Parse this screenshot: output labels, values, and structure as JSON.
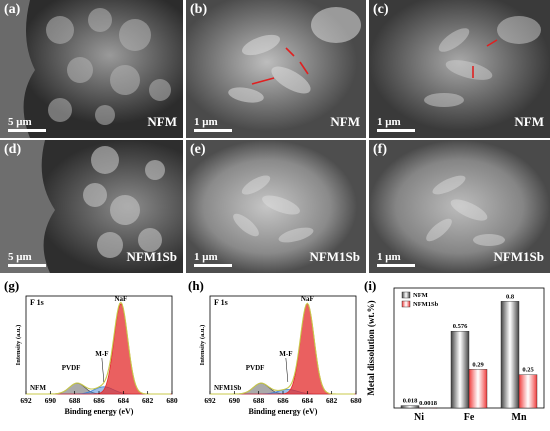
{
  "sem_panels": [
    {
      "label": "(a)",
      "sample": "NFM",
      "scale": "5 μm"
    },
    {
      "label": "(b)",
      "sample": "NFM",
      "scale": "1 μm"
    },
    {
      "label": "(c)",
      "sample": "NFM",
      "scale": "1 μm"
    },
    {
      "label": "(d)",
      "sample": "NFM1Sb",
      "scale": "5 μm"
    },
    {
      "label": "(e)",
      "sample": "NFM1Sb",
      "scale": "1 μm"
    },
    {
      "label": "(f)",
      "sample": "NFM1Sb",
      "scale": "1 μm"
    }
  ],
  "colors": {
    "naf": "#e32b2b",
    "mf": "#3a7fd6",
    "pvdf": "#555555",
    "envelope": "#c8c84a",
    "nfm_bar": "#404040",
    "nfm1sb_bar": "#ef3a3a"
  },
  "chart_data": [
    {
      "type": "area",
      "panel_label": "(g)",
      "inner_label": "F 1s",
      "sample_label": "NFM",
      "xlabel": "Binding energy (eV)",
      "ylabel": "Intensity (a.u.)",
      "xlim": [
        692,
        680
      ],
      "xticks": [
        692,
        690,
        688,
        686,
        684,
        682,
        680
      ],
      "peak_labels": [
        "PVDF",
        "M-F",
        "NaF"
      ],
      "peaks": [
        {
          "label": "PVDF",
          "center": 687.8,
          "height": 0.12
        },
        {
          "label": "M-F",
          "center": 685.6,
          "height": 0.08
        },
        {
          "label": "NaF",
          "center": 684.2,
          "height": 1.0
        }
      ]
    },
    {
      "type": "area",
      "panel_label": "(h)",
      "inner_label": "F 1s",
      "sample_label": "NFM1Sb",
      "xlabel": "Binding energy (eV)",
      "ylabel": "Intensity (a.u.)",
      "xlim": [
        692,
        680
      ],
      "xticks": [
        692,
        690,
        688,
        686,
        684,
        682,
        680
      ],
      "peak_labels": [
        "PVDF",
        "M-F",
        "NaF"
      ],
      "peaks": [
        {
          "label": "PVDF",
          "center": 687.8,
          "height": 0.12
        },
        {
          "label": "M-F",
          "center": 685.6,
          "height": 0.05
        },
        {
          "label": "NaF",
          "center": 684.0,
          "height": 1.0
        }
      ]
    },
    {
      "type": "bar",
      "panel_label": "(i)",
      "categories": [
        "Ni",
        "Fe",
        "Mn"
      ],
      "series": [
        {
          "name": "NFM",
          "values": [
            0.018,
            0.576,
            0.8
          ]
        },
        {
          "name": "NFM1Sb",
          "values": [
            0.0018,
            0.29,
            0.25
          ]
        }
      ],
      "value_labels": [
        [
          "0.018",
          "0.576",
          "0.8"
        ],
        [
          "0.0018",
          "0.29",
          "0.25"
        ]
      ],
      "ylabel": "Metal dissolution (wt.%)",
      "ylim": [
        0,
        0.9
      ]
    }
  ]
}
